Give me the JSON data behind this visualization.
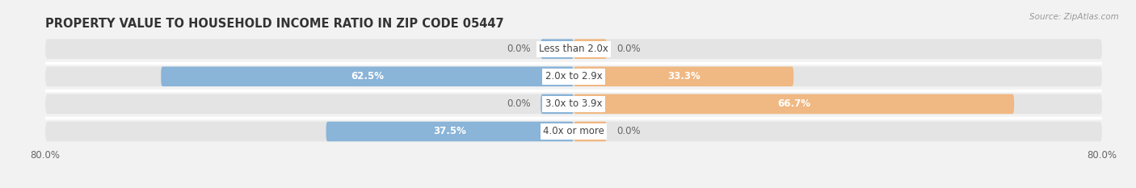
{
  "title": "PROPERTY VALUE TO HOUSEHOLD INCOME RATIO IN ZIP CODE 05447",
  "source": "Source: ZipAtlas.com",
  "categories": [
    "Less than 2.0x",
    "2.0x to 2.9x",
    "3.0x to 3.9x",
    "4.0x or more"
  ],
  "without_mortgage": [
    0.0,
    62.5,
    0.0,
    37.5
  ],
  "with_mortgage": [
    0.0,
    33.3,
    66.7,
    0.0
  ],
  "color_without": "#8ab4d8",
  "color_with": "#f0b882",
  "bar_height": 0.72,
  "small_bar_width": 5.0,
  "xlim": [
    -80.0,
    80.0
  ],
  "x_tick_labels": [
    "80.0%",
    "80.0%"
  ],
  "background_color": "#f2f2f2",
  "bar_bg_color": "#e4e4e4",
  "row_sep_color": "#ffffff",
  "title_fontsize": 10.5,
  "label_fontsize": 8.5,
  "axis_fontsize": 8.5,
  "category_fontsize": 8.5
}
